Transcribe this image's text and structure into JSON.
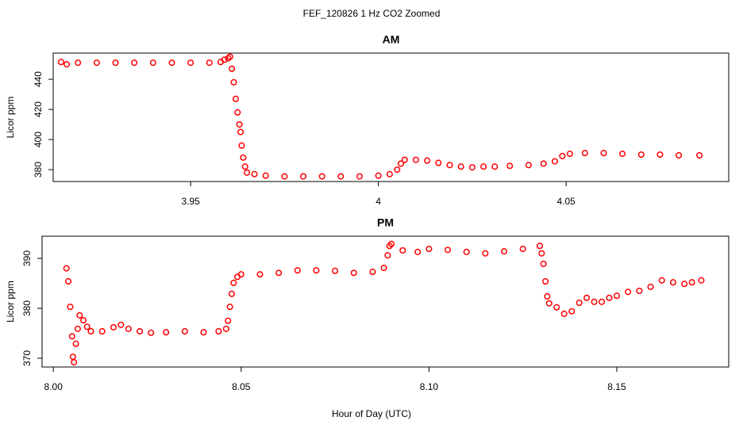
{
  "title": "FEF_120826  1 Hz CO2 Zoomed",
  "xlabel": "Hour of Day (UTC)",
  "chart_data": [
    {
      "type": "scatter",
      "title": "AM",
      "ylabel": "Licor ppm",
      "color": "#ff0000",
      "xlim": [
        3.9134,
        4.0933
      ],
      "ylim": [
        372.1,
        457.4
      ],
      "xticks": [
        3.95,
        4.0,
        4.05
      ],
      "yticks": [
        380,
        400,
        420,
        440
      ],
      "x": [
        3.9155,
        3.917,
        3.92,
        3.925,
        3.93,
        3.935,
        3.94,
        3.945,
        3.95,
        3.955,
        3.958,
        3.959,
        3.96,
        3.9605,
        3.961,
        3.9615,
        3.962,
        3.9625,
        3.963,
        3.9633,
        3.9636,
        3.964,
        3.9645,
        3.965,
        3.967,
        3.97,
        3.975,
        3.98,
        3.985,
        3.99,
        3.995,
        4.0,
        4.003,
        4.005,
        4.006,
        4.007,
        4.01,
        4.013,
        4.016,
        4.019,
        4.022,
        4.025,
        4.028,
        4.031,
        4.035,
        4.04,
        4.044,
        4.047,
        4.049,
        4.051,
        4.055,
        4.06,
        4.065,
        4.07,
        4.075,
        4.08,
        4.0855
      ],
      "values": [
        451.5,
        450,
        451,
        451,
        451,
        451,
        451,
        451,
        451,
        451,
        451.5,
        453,
        454,
        455,
        447,
        438,
        427,
        418,
        410,
        405,
        396,
        388,
        382,
        378,
        377,
        376,
        375.5,
        375.5,
        375.5,
        375.5,
        375.5,
        376,
        377,
        380,
        384,
        386.5,
        386.5,
        386,
        384.5,
        383,
        382,
        381.5,
        382,
        382,
        382.5,
        383,
        384,
        385.5,
        389,
        390.5,
        391,
        391,
        390.5,
        390,
        390,
        389.5,
        389.5
      ]
    },
    {
      "type": "scatter",
      "title": "PM",
      "ylabel": "Licor ppm",
      "color": "#ff0000",
      "xlim": [
        7.997,
        8.1798
      ],
      "ylim": [
        368.25,
        394.44
      ],
      "xticks": [
        {
          "value": 8.0,
          "label": "8.00"
        },
        8.05,
        {
          "value": 8.1,
          "label": "8.10"
        },
        8.15
      ],
      "yticks": [
        370,
        380,
        390
      ],
      "x": [
        8.0035,
        8.004,
        8.0045,
        8.005,
        8.0052,
        8.0055,
        8.006,
        8.0065,
        8.007,
        8.008,
        8.009,
        8.01,
        8.013,
        8.016,
        8.018,
        8.02,
        8.023,
        8.026,
        8.03,
        8.035,
        8.04,
        8.044,
        8.046,
        8.0465,
        8.047,
        8.0475,
        8.048,
        8.049,
        8.05,
        8.055,
        8.06,
        8.065,
        8.07,
        8.075,
        8.08,
        8.085,
        8.088,
        8.089,
        8.0895,
        8.09,
        8.093,
        8.097,
        8.1,
        8.105,
        8.11,
        8.115,
        8.12,
        8.125,
        8.1295,
        8.13,
        8.1305,
        8.131,
        8.1315,
        8.132,
        8.134,
        8.136,
        8.138,
        8.14,
        8.142,
        8.144,
        8.146,
        8.148,
        8.15,
        8.153,
        8.156,
        8.159,
        8.162,
        8.165,
        8.168,
        8.17,
        8.1725
      ],
      "values": [
        388,
        385.4,
        380.3,
        374.4,
        370.3,
        369.2,
        372.9,
        375.9,
        378.6,
        377.6,
        376.3,
        375.4,
        375.4,
        376.2,
        376.7,
        375.9,
        375.4,
        375.1,
        375.2,
        375.4,
        375.2,
        375.4,
        375.9,
        377.5,
        380.3,
        382.9,
        385.1,
        386.3,
        386.8,
        386.8,
        387.1,
        387.6,
        387.6,
        387.5,
        387.1,
        387.3,
        388.1,
        390.6,
        392.5,
        392.9,
        391.6,
        391.3,
        391.9,
        391.7,
        391.3,
        391,
        391.4,
        391.9,
        392.5,
        391,
        388.9,
        385.4,
        382.4,
        381,
        380.2,
        378.9,
        379.4,
        381.1,
        382.1,
        381.3,
        381.3,
        382.1,
        382.5,
        383.3,
        383.5,
        384.3,
        385.6,
        385.2,
        384.9,
        385.2,
        385.6
      ]
    }
  ]
}
